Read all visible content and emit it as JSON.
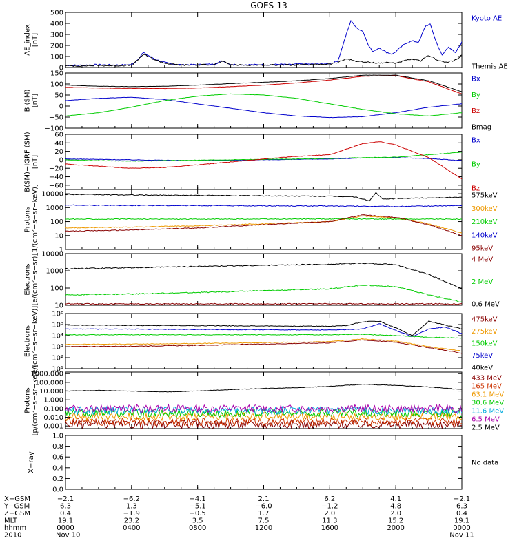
{
  "title": "GOES-13",
  "chart_data": [
    {
      "type": "line",
      "id": "ae",
      "ylabel": [
        "AE_index",
        "[nT]"
      ],
      "ylim": [
        0,
        500
      ],
      "scale": "linear",
      "yticks": [
        0,
        100,
        200,
        300,
        400,
        500
      ],
      "ytick_labels": [
        "0",
        "100",
        "200",
        "300",
        "400",
        "500"
      ],
      "series": [
        {
          "name": "Kyoto AE",
          "color": "#0000cc",
          "x": [
            0,
            1,
            2,
            3,
            4,
            4.3,
            4.7,
            5,
            5.5,
            6,
            6.5,
            7,
            7.5,
            8,
            8.5,
            9,
            9.5,
            10,
            10.5,
            11,
            11.5,
            12,
            12.5,
            13,
            13.5,
            14,
            14.5,
            15,
            15.5,
            16,
            16.5,
            17,
            17.3,
            17.6,
            18,
            18.3,
            18.6,
            19,
            19.4,
            19.8,
            20.2,
            20.6,
            21,
            21.4,
            21.8,
            22.1,
            22.4,
            22.8,
            23.2,
            23.6,
            24
          ],
          "y": [
            20,
            20,
            25,
            22,
            25,
            60,
            135,
            110,
            70,
            45,
            30,
            25,
            25,
            25,
            28,
            30,
            60,
            28,
            25,
            25,
            25,
            25,
            25,
            30,
            25,
            30,
            30,
            30,
            35,
            35,
            60,
            300,
            430,
            360,
            330,
            220,
            140,
            180,
            140,
            120,
            170,
            220,
            240,
            230,
            380,
            390,
            250,
            110,
            190,
            130,
            230
          ]
        },
        {
          "name": "Themis AE",
          "color": "#000000",
          "x": [
            0,
            1,
            2,
            3,
            4,
            4.3,
            4.7,
            5,
            5.5,
            6,
            6.5,
            7,
            7.5,
            8,
            8.5,
            9,
            9.5,
            10,
            10.5,
            11,
            11.5,
            12,
            12.5,
            13,
            13.5,
            14,
            14.5,
            15,
            15.5,
            16,
            16.5,
            17,
            17.5,
            18,
            18.5,
            19,
            19.5,
            20,
            20.5,
            21,
            21.5,
            22,
            22.5,
            23,
            23.5,
            24
          ],
          "y": [
            15,
            15,
            18,
            16,
            20,
            55,
            120,
            100,
            65,
            40,
            28,
            22,
            22,
            22,
            25,
            28,
            55,
            25,
            22,
            22,
            22,
            22,
            22,
            25,
            22,
            25,
            25,
            25,
            30,
            30,
            45,
            80,
            60,
            50,
            45,
            40,
            45,
            40,
            60,
            75,
            60,
            110,
            70,
            45,
            60,
            110
          ]
        }
      ]
    },
    {
      "type": "line",
      "id": "bsm",
      "ylabel": [
        "B (SM)",
        "[nT]"
      ],
      "ylim": [
        -100,
        150
      ],
      "scale": "linear",
      "yticks": [
        -100,
        -50,
        0,
        50,
        100,
        150
      ],
      "ytick_labels": [
        "−100",
        "−50",
        "0",
        "50",
        "100",
        "150"
      ],
      "series": [
        {
          "name": "Bx",
          "color": "#0000cc",
          "x": [
            0,
            2,
            4,
            6,
            8,
            10,
            12,
            14,
            16,
            18,
            20,
            22,
            24
          ],
          "y": [
            25,
            35,
            40,
            30,
            10,
            -10,
            -30,
            -45,
            -52,
            -48,
            -30,
            -5,
            10
          ]
        },
        {
          "name": "By",
          "color": "#00cc00",
          "x": [
            0,
            2,
            4,
            6,
            8,
            10,
            12,
            14,
            16,
            18,
            20,
            22,
            24
          ],
          "y": [
            -45,
            -30,
            -5,
            25,
            45,
            55,
            50,
            35,
            10,
            -15,
            -35,
            -45,
            -30
          ]
        },
        {
          "name": "Bz",
          "color": "#cc0000",
          "x": [
            0,
            2,
            4,
            6,
            8,
            10,
            12,
            14,
            16,
            18,
            20,
            22,
            24
          ],
          "y": [
            85,
            82,
            80,
            80,
            82,
            88,
            95,
            105,
            118,
            135,
            138,
            110,
            55
          ]
        },
        {
          "name": "Bmag",
          "color": "#000000",
          "x": [
            0,
            2,
            4,
            6,
            8,
            10,
            12,
            14,
            16,
            18,
            20,
            22,
            24
          ],
          "y": [
            95,
            90,
            88,
            90,
            95,
            102,
            108,
            115,
            125,
            140,
            140,
            115,
            65
          ]
        }
      ]
    },
    {
      "type": "line",
      "id": "bigrf",
      "ylabel": [
        "B(SM)−IGRF (SM)",
        "[nT]"
      ],
      "ylim": [
        -70,
        60
      ],
      "scale": "linear",
      "yticks": [
        -60,
        -40,
        -20,
        0,
        20,
        40,
        60
      ],
      "ytick_labels": [
        "−60",
        "−40",
        "−20",
        "0",
        "20",
        "40",
        "60"
      ],
      "series": [
        {
          "name": "Bx",
          "color": "#0000cc",
          "x": [
            0,
            2,
            4,
            6,
            8,
            10,
            12,
            14,
            16,
            18,
            20,
            22,
            24
          ],
          "y": [
            2,
            1,
            0,
            -1,
            -2,
            -1,
            0,
            1,
            2,
            4,
            5,
            3,
            -2
          ]
        },
        {
          "name": "By",
          "color": "#00cc00",
          "x": [
            0,
            2,
            4,
            6,
            8,
            10,
            12,
            14,
            16,
            18,
            20,
            22,
            24
          ],
          "y": [
            0,
            -2,
            -3,
            -2,
            -1,
            0,
            1,
            2,
            3,
            5,
            6,
            12,
            18
          ]
        },
        {
          "name": "Bz",
          "color": "#cc0000",
          "x": [
            0,
            2,
            4,
            6,
            8,
            10,
            12,
            14,
            16,
            17,
            18,
            19,
            20,
            21,
            22,
            23,
            24
          ],
          "y": [
            -10,
            -15,
            -20,
            -18,
            -12,
            -5,
            2,
            8,
            12,
            25,
            38,
            43,
            35,
            20,
            5,
            -20,
            -45
          ]
        }
      ]
    },
    {
      "type": "line",
      "id": "protons1",
      "ylabel": [
        "Protons",
        "[1/(cm²−s−sr−keV)]"
      ],
      "ylim": [
        1,
        20000
      ],
      "scale": "log",
      "yticks": [
        1,
        10,
        100,
        1000,
        10000
      ],
      "ytick_labels": [
        "1",
        "10",
        "100",
        "1000",
        "10000"
      ],
      "series": [
        {
          "name": "575keV",
          "color": "#000000",
          "x": [
            0,
            4,
            8,
            12,
            16,
            17.5,
            18.4,
            18.8,
            19.2,
            20,
            22,
            24
          ],
          "y": [
            9000,
            8000,
            7500,
            7000,
            6500,
            6000,
            3000,
            12000,
            4000,
            4500,
            5000,
            5500
          ]
        },
        {
          "name": "300keV",
          "color": "#ee9900",
          "x": [
            0,
            4,
            8,
            12,
            16,
            18,
            20,
            22,
            24
          ],
          "y": [
            35,
            40,
            50,
            70,
            100,
            250,
            180,
            70,
            15
          ]
        },
        {
          "name": "210keV",
          "color": "#00cc00",
          "x": [
            0,
            4,
            8,
            12,
            16,
            20,
            24
          ],
          "y": [
            150,
            150,
            150,
            150,
            155,
            150,
            150
          ]
        },
        {
          "name": "140keV",
          "color": "#0000cc",
          "x": [
            0,
            4,
            8,
            12,
            16,
            20,
            24
          ],
          "y": [
            1500,
            1450,
            1400,
            1350,
            1300,
            1200,
            1400
          ]
        },
        {
          "name": "95keV",
          "color": "#880000",
          "x": [
            0,
            4,
            8,
            12,
            16,
            18,
            20,
            22,
            24
          ],
          "y": [
            20,
            25,
            35,
            60,
            100,
            300,
            200,
            60,
            10
          ]
        }
      ]
    },
    {
      "type": "line",
      "id": "electrons1",
      "ylabel": [
        "Electrons",
        "[e/(cm²−s−sr)]"
      ],
      "ylim": [
        10,
        10000
      ],
      "scale": "log",
      "yticks": [
        10,
        100,
        1000,
        10000
      ],
      "ytick_labels": [
        "10",
        "100",
        "1000",
        "10000"
      ],
      "series": [
        {
          "name": "4 MeV",
          "color": "#880000",
          "x": [
            0,
            4,
            8,
            12,
            16,
            20,
            24
          ],
          "y": [
            12,
            12,
            12,
            12,
            12,
            12,
            12
          ]
        },
        {
          "name": "2 MeV",
          "color": "#00cc00",
          "x": [
            0,
            4,
            8,
            12,
            16,
            18,
            20,
            22,
            24
          ],
          "y": [
            40,
            45,
            55,
            70,
            90,
            150,
            120,
            40,
            15
          ]
        },
        {
          "name": "0.6 MeV",
          "color": "#000000",
          "x": [
            0,
            4,
            8,
            12,
            16,
            18,
            20,
            22,
            24
          ],
          "y": [
            1300,
            1500,
            1800,
            2100,
            2400,
            2800,
            2300,
            600,
            90
          ]
        }
      ]
    },
    {
      "type": "line",
      "id": "electrons2",
      "ylabel": [
        "Electrons",
        "[e/(cm²−s−sr−keV)]"
      ],
      "ylim": [
        10,
        1000000
      ],
      "scale": "log",
      "yticks": [
        10,
        100,
        1000,
        10000,
        100000,
        1000000
      ],
      "ytick_labels": [
        "10¹",
        "10²",
        "10³",
        "10⁴",
        "10⁵",
        "10⁶"
      ],
      "series": [
        {
          "name": "475keV",
          "color": "#880000",
          "x": [
            0,
            4,
            8,
            12,
            16,
            18,
            20,
            22,
            24
          ],
          "y": [
            1000,
            1100,
            1300,
            1700,
            2200,
            4000,
            2500,
            800,
            250
          ]
        },
        {
          "name": "275keV",
          "color": "#ee9900",
          "x": [
            0,
            4,
            8,
            12,
            16,
            18,
            20,
            22,
            24
          ],
          "y": [
            1600,
            1700,
            1900,
            2300,
            2800,
            5000,
            3200,
            1000,
            400
          ]
        },
        {
          "name": "150keV",
          "color": "#00cc00",
          "x": [
            0,
            4,
            8,
            12,
            16,
            18,
            20,
            22,
            24
          ],
          "y": [
            12000,
            12000,
            12000,
            12000,
            12000,
            13000,
            10000,
            7000,
            6000
          ]
        },
        {
          "name": "75keV",
          "color": "#0000cc",
          "x": [
            0,
            4,
            8,
            12,
            16,
            18,
            19,
            20,
            21,
            22,
            23,
            24
          ],
          "y": [
            40000,
            38000,
            36000,
            34000,
            32000,
            40000,
            120000,
            30000,
            8000,
            40000,
            60000,
            15000
          ]
        },
        {
          "name": "40keV",
          "color": "#000000",
          "x": [
            0,
            4,
            8,
            12,
            16,
            17,
            18,
            19,
            20,
            21,
            22,
            23,
            24
          ],
          "y": [
            90000,
            85000,
            80000,
            75000,
            70000,
            80000,
            180000,
            200000,
            50000,
            10000,
            200000,
            90000,
            40000
          ]
        }
      ]
    },
    {
      "type": "line",
      "id": "protons2",
      "ylabel": [
        "Protons",
        "[p/(cm²−s−sr−keV)]"
      ],
      "ylim": [
        0.0005,
        1500
      ],
      "scale": "log",
      "yticks": [
        0.001,
        0.01,
        0.1,
        1,
        10,
        100,
        1000
      ],
      "ytick_labels": [
        "0.001",
        "0.010",
        "0.100",
        "1.000",
        "10.000",
        "100.000",
        "1000.000"
      ],
      "series": [
        {
          "name": "433 MeV",
          "color": "#880000",
          "x": [
            0,
            24
          ],
          "y": [
            0.0015,
            0.0015
          ]
        },
        {
          "name": "165 MeV",
          "color": "#cc3300",
          "x": [
            0,
            24
          ],
          "y": [
            0.003,
            0.003
          ]
        },
        {
          "name": "63.1 MeV",
          "color": "#ee9900",
          "x": [
            0,
            24
          ],
          "y": [
            0.012,
            0.012
          ]
        },
        {
          "name": "30.6 MeV",
          "color": "#00cc00",
          "x": [
            0,
            24
          ],
          "y": [
            0.03,
            0.03
          ]
        },
        {
          "name": "11.6 MeV",
          "color": "#00aadd",
          "x": [
            0,
            24
          ],
          "y": [
            0.06,
            0.06
          ]
        },
        {
          "name": "6.5 MeV",
          "color": "#aa00aa",
          "x": [
            0,
            24
          ],
          "y": [
            0.1,
            0.1
          ]
        },
        {
          "name": "2.5 MeV",
          "color": "#000000",
          "x": [
            0,
            2,
            4,
            6,
            8,
            10,
            12,
            14,
            16,
            18,
            20,
            22,
            24
          ],
          "y": [
            10,
            12,
            10,
            8,
            10,
            15,
            20,
            25,
            35,
            60,
            45,
            30,
            15
          ]
        }
      ]
    },
    {
      "type": "line",
      "id": "xray",
      "ylabel": [
        "X−ray"
      ],
      "ylim": [
        0,
        1
      ],
      "scale": "linear",
      "yticks": [
        0,
        0.2,
        0.4,
        0.6,
        0.8,
        1
      ],
      "ytick_labels": [
        "0.0",
        "0.2",
        "0.4",
        "0.6",
        "0.8",
        "1.0"
      ],
      "series": [],
      "note": "No data"
    }
  ],
  "xaxis": {
    "range": [
      0,
      24
    ],
    "ticks": [
      0,
      4,
      8,
      12,
      16,
      20,
      24
    ]
  },
  "ephemeris": {
    "rows": [
      {
        "label": "X−GSM",
        "values": [
          "−2.1",
          "−6.2",
          "−4.1",
          "2.1",
          "6.2",
          "4.1",
          "−2.1"
        ]
      },
      {
        "label": "Y−GSM",
        "values": [
          "6.3",
          "1.3",
          "−5.1",
          "−6.0",
          "−1.2",
          "4.8",
          "6.3"
        ]
      },
      {
        "label": "Z−GSM",
        "values": [
          "0.4",
          "−1.9",
          "−0.5",
          "1.7",
          "2.0",
          "2.0",
          "0.4"
        ]
      },
      {
        "label": "MLT",
        "values": [
          "19.1",
          "23.2",
          "3.5",
          "7.5",
          "11.3",
          "15.2",
          "19.1"
        ]
      },
      {
        "label": "hhmm",
        "values": [
          "0000",
          "0400",
          "0800",
          "1200",
          "1600",
          "2000",
          "0000"
        ]
      },
      {
        "label": "2010",
        "values": [
          "Nov 10",
          "",
          "",
          "",
          "",
          "",
          "Nov 11"
        ]
      }
    ]
  }
}
